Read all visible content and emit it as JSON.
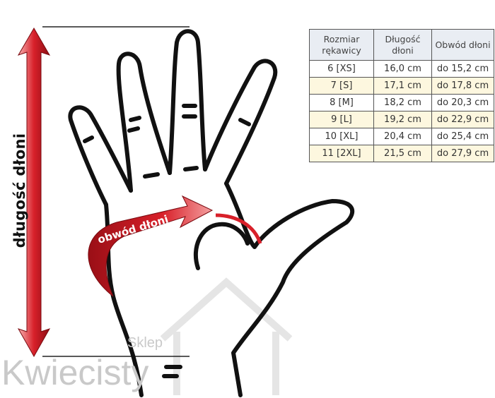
{
  "labels": {
    "length": "długość dłoni",
    "circumference": "obwód dłoni"
  },
  "watermark": {
    "brand": "Kwiecisty",
    "prefix": "Sklep"
  },
  "table": {
    "headers": [
      "Rozmiar rękawicy",
      "Długość dłoni",
      "Obwód dłoni"
    ],
    "rows": [
      [
        "6 [XS]",
        "16,0 cm",
        "do 15,2 cm"
      ],
      [
        "7 [S]",
        "17,1 cm",
        "do 17,8 cm"
      ],
      [
        "8 [M]",
        "18,2 cm",
        "do 20,3 cm"
      ],
      [
        "9 [L]",
        "19,2 cm",
        "do 22,9 cm"
      ],
      [
        "10 [XL]",
        "20,4 cm",
        "do 25,4 cm"
      ],
      [
        "11 [2XL]",
        "21,5 cm",
        "do 27,9 cm"
      ]
    ]
  },
  "colors": {
    "arrow": "#d8202a",
    "header_bg": "#e9edf3",
    "alt_row": "#fdf7df"
  }
}
